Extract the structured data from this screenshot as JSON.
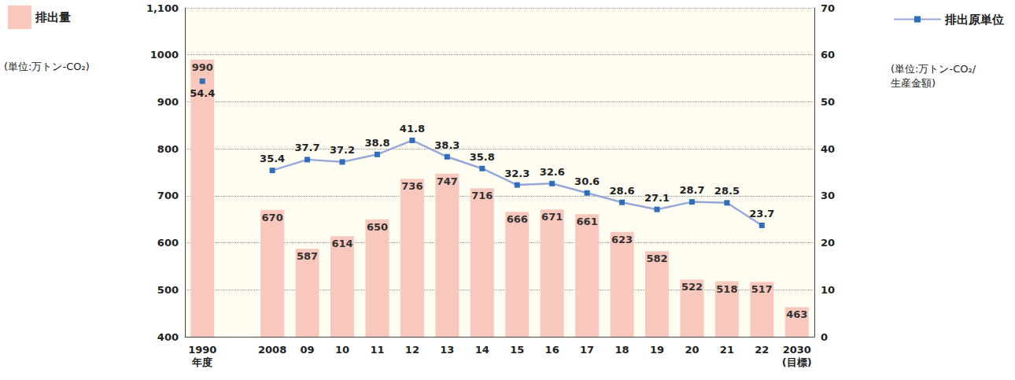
{
  "chart_data": {
    "type": "bar",
    "categories": [
      "1990\n年度",
      null,
      "2008",
      "09",
      "10",
      "11",
      "12",
      "13",
      "14",
      "15",
      "16",
      "17",
      "18",
      "19",
      "20",
      "21",
      "22",
      "2030\n(目標)"
    ],
    "series": [
      {
        "name": "排出量",
        "type": "bar",
        "color": "#f9c8bc",
        "values": [
          990,
          null,
          670,
          587,
          614,
          650,
          736,
          747,
          716,
          666,
          671,
          661,
          623,
          582,
          522,
          518,
          517,
          463
        ]
      },
      {
        "name": "排出原単位",
        "type": "line",
        "axis": "y2",
        "color": "#97a8d8",
        "marker": "square",
        "line_style": "solid",
        "values": [
          54.4,
          null,
          35.4,
          37.7,
          37.2,
          38.8,
          41.8,
          38.3,
          35.8,
          32.3,
          32.6,
          30.6,
          28.6,
          27.1,
          28.7,
          28.5,
          23.7,
          null
        ]
      }
    ],
    "y_label": "(単位:万トン-CO₂)",
    "y2_label": "(単位:万トン-CO₂/\n生産金額)",
    "ylim": [
      400,
      1100
    ],
    "yticks": [
      400,
      500,
      600,
      700,
      800,
      900,
      1000,
      {
        "value": 1100,
        "label": "1,100"
      }
    ],
    "y2lim": [
      0,
      70
    ],
    "y2ticks": [
      0,
      10,
      20,
      30,
      40,
      50,
      60,
      70
    ],
    "grid": true,
    "legend": "top",
    "data_labels": true
  }
}
